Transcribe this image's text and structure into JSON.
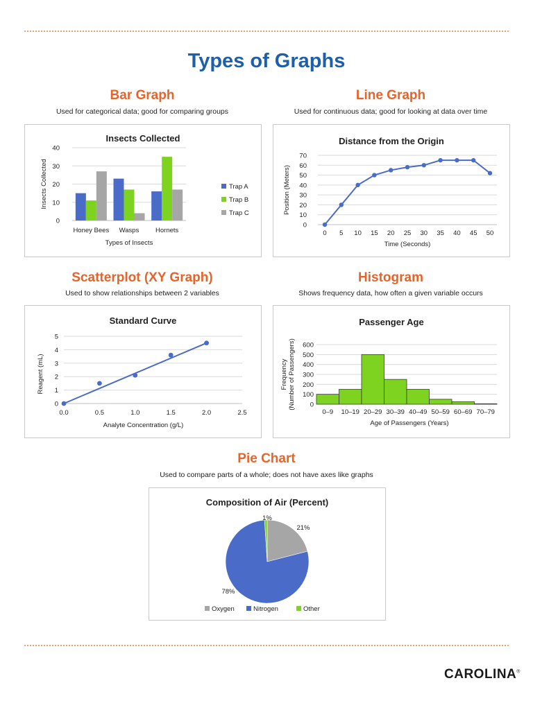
{
  "page": {
    "title": "Types of Graphs",
    "logo": "CAROLINA",
    "colors": {
      "title": "#1e5fa8",
      "heading": "#e8632a",
      "blue": "#4a6cc8",
      "green": "#7ed321",
      "gray": "#a6a6a6"
    }
  },
  "sections": {
    "bar": {
      "heading": "Bar Graph",
      "desc": "Used for categorical data; good for comparing groups"
    },
    "line": {
      "heading": "Line Graph",
      "desc": "Used for continuous data; good for looking at data over time"
    },
    "scatter": {
      "heading": "Scatterplot (XY Graph)",
      "desc": "Used to show relationships between 2 variables"
    },
    "histogram": {
      "heading": "Histogram",
      "desc": "Shows frequency data, how often a given variable occurs"
    },
    "pie": {
      "heading": "Pie Chart",
      "desc": "Used to compare parts of a whole; does not have axes like graphs"
    }
  },
  "chart_data": [
    {
      "type": "bar",
      "title": "Insects Collected",
      "xlabel": "Types of Insects",
      "ylabel": "Insects Collected",
      "categories": [
        "Honey Bees",
        "Wasps",
        "Hornets"
      ],
      "series": [
        {
          "name": "Trap A",
          "values": [
            15,
            23,
            16
          ],
          "color": "#4a6cc8"
        },
        {
          "name": "Trap B",
          "values": [
            11,
            17,
            35
          ],
          "color": "#7ed321"
        },
        {
          "name": "Trap C",
          "values": [
            27,
            4,
            17
          ],
          "color": "#a6a6a6"
        }
      ],
      "ylim": [
        0,
        40
      ],
      "yticks": [
        0,
        10,
        20,
        30,
        40
      ],
      "grid": true,
      "legend": "right"
    },
    {
      "type": "line",
      "title": "Distance from the Origin",
      "xlabel": "Time (Seconds)",
      "ylabel": "Position (Meters)",
      "x": [
        0,
        5,
        10,
        15,
        20,
        25,
        30,
        35,
        40,
        45,
        50
      ],
      "series": [
        {
          "values": [
            0,
            20,
            40,
            50,
            55,
            58,
            60,
            65,
            65,
            65,
            52
          ],
          "color": "#4a6cc8"
        }
      ],
      "ylim": [
        0,
        70
      ],
      "yticks": [
        0,
        10,
        20,
        30,
        40,
        50,
        60,
        70
      ],
      "grid": true
    },
    {
      "type": "scatter",
      "title": "Standard Curve",
      "xlabel": "Analyte Concentration (g/L)",
      "ylabel": "Reagent (mL)",
      "points": [
        {
          "x": 0.0,
          "y": 0.0
        },
        {
          "x": 0.5,
          "y": 1.5
        },
        {
          "x": 1.0,
          "y": 2.1
        },
        {
          "x": 1.5,
          "y": 3.6
        },
        {
          "x": 2.0,
          "y": 4.5
        }
      ],
      "trendline": {
        "x": [
          0.0,
          2.0
        ],
        "y": [
          0.0,
          4.5
        ]
      },
      "xlim": [
        0,
        2.5
      ],
      "ylim": [
        0,
        5
      ],
      "xticks": [
        "0.0",
        "0.5",
        "1.0",
        "1.5",
        "2.0",
        "2.5"
      ],
      "yticks": [
        0,
        1,
        2,
        3,
        4,
        5
      ],
      "grid": true,
      "color": "#4a6cc8"
    },
    {
      "type": "bar",
      "subtype": "histogram",
      "title": "Passenger Age",
      "xlabel": "Age of Passengers (Years)",
      "ylabel": "Frequency (Number of Passengers)",
      "ylabel_lines": [
        "Frequency",
        "(Number of Passengers)"
      ],
      "categories": [
        "0–9",
        "10–19",
        "20–29",
        "30–39",
        "40–49",
        "50–59",
        "60–69",
        "70–79"
      ],
      "values": [
        100,
        150,
        500,
        250,
        150,
        50,
        25,
        5
      ],
      "ylim": [
        0,
        600
      ],
      "yticks": [
        0,
        100,
        200,
        300,
        400,
        500,
        600
      ],
      "grid": true,
      "color": "#7ed321"
    },
    {
      "type": "pie",
      "title": "Composition of Air (Percent)",
      "slices": [
        {
          "label": "Oxygen",
          "value": 21,
          "display": "21%",
          "color": "#a6a6a6"
        },
        {
          "label": "Nitrogen",
          "value": 78,
          "display": "78%",
          "color": "#4a6cc8"
        },
        {
          "label": "Other",
          "value": 1,
          "display": "1%",
          "color": "#7ed321"
        }
      ],
      "legend": "bottom"
    }
  ]
}
